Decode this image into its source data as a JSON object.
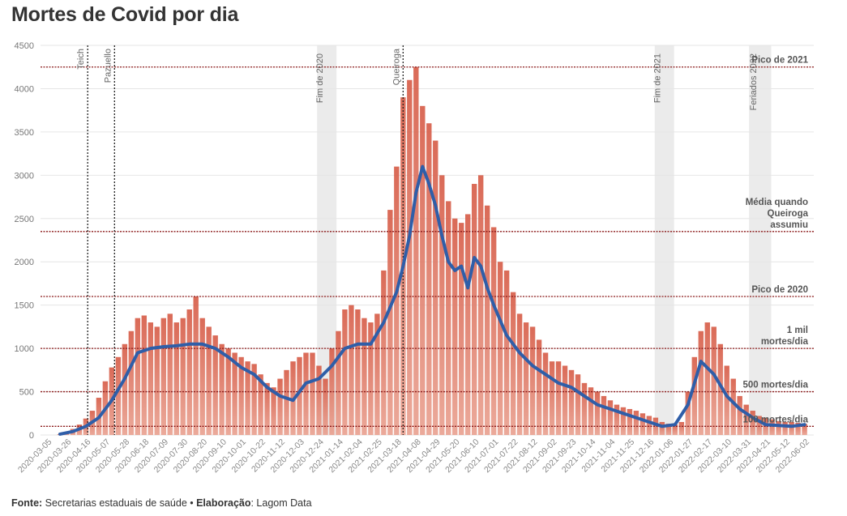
{
  "title": "Mortes de Covid por dia",
  "footer": {
    "source_label": "Fonte:",
    "source_text": " Secretarias estaduais de saúde • ",
    "credit_label": "Elaboração",
    "credit_text": ": Lagom Data"
  },
  "chart_data": {
    "type": "bar",
    "title": "Mortes de Covid por dia",
    "ylim": [
      0,
      4500
    ],
    "yticks": [
      0,
      500,
      1000,
      1500,
      2000,
      2500,
      3000,
      3500,
      4000,
      4500
    ],
    "xlim": [
      "2020-02-25",
      "2022-06-10"
    ],
    "xticks": [
      "2020-03-05",
      "2020-03-26",
      "2020-04-16",
      "2020-05-07",
      "2020-05-28",
      "2020-06-18",
      "2020-07-09",
      "2020-07-30",
      "2020-08-20",
      "2020-09-10",
      "2020-10-01",
      "2020-10-22",
      "2020-11-12",
      "2020-12-03",
      "2020-12-24",
      "2021-01-14",
      "2021-02-04",
      "2021-02-25",
      "2021-03-18",
      "2021-04-08",
      "2021-04-29",
      "2021-05-20",
      "2021-06-10",
      "2021-07-01",
      "2021-07-22",
      "2021-08-12",
      "2021-09-02",
      "2021-09-23",
      "2021-10-14",
      "2021-11-04",
      "2021-11-25",
      "2021-12-16",
      "2022-01-06",
      "2022-01-27",
      "2022-02-17",
      "2022-03-10",
      "2022-03-31",
      "2022-04-21",
      "2022-05-12",
      "2022-06-02"
    ],
    "series": [
      {
        "kind": "bars",
        "color": "#d9604b",
        "x": [
          "2020-03-17",
          "2020-03-24",
          "2020-03-31",
          "2020-04-07",
          "2020-04-14",
          "2020-04-21",
          "2020-04-28",
          "2020-05-05",
          "2020-05-12",
          "2020-05-19",
          "2020-05-26",
          "2020-06-02",
          "2020-06-09",
          "2020-06-16",
          "2020-06-23",
          "2020-06-30",
          "2020-07-07",
          "2020-07-14",
          "2020-07-21",
          "2020-07-28",
          "2020-08-04",
          "2020-08-11",
          "2020-08-18",
          "2020-08-25",
          "2020-09-01",
          "2020-09-08",
          "2020-09-15",
          "2020-09-22",
          "2020-09-29",
          "2020-10-06",
          "2020-10-13",
          "2020-10-20",
          "2020-10-27",
          "2020-11-03",
          "2020-11-10",
          "2020-11-17",
          "2020-11-24",
          "2020-12-01",
          "2020-12-08",
          "2020-12-15",
          "2020-12-22",
          "2020-12-29",
          "2021-01-05",
          "2021-01-12",
          "2021-01-19",
          "2021-01-26",
          "2021-02-02",
          "2021-02-09",
          "2021-02-16",
          "2021-02-23",
          "2021-03-02",
          "2021-03-09",
          "2021-03-16",
          "2021-03-23",
          "2021-03-30",
          "2021-04-06",
          "2021-04-13",
          "2021-04-20",
          "2021-04-27",
          "2021-05-04",
          "2021-05-11",
          "2021-05-18",
          "2021-05-25",
          "2021-06-01",
          "2021-06-08",
          "2021-06-15",
          "2021-06-22",
          "2021-06-29",
          "2021-07-06",
          "2021-07-13",
          "2021-07-20",
          "2021-07-27",
          "2021-08-03",
          "2021-08-10",
          "2021-08-17",
          "2021-08-24",
          "2021-08-31",
          "2021-09-07",
          "2021-09-14",
          "2021-09-21",
          "2021-09-28",
          "2021-10-05",
          "2021-10-12",
          "2021-10-19",
          "2021-10-26",
          "2021-11-02",
          "2021-11-09",
          "2021-11-16",
          "2021-11-23",
          "2021-11-30",
          "2021-12-07",
          "2021-12-14",
          "2021-12-21",
          "2021-12-28",
          "2022-01-04",
          "2022-01-11",
          "2022-01-18",
          "2022-01-25",
          "2022-02-01",
          "2022-02-08",
          "2022-02-15",
          "2022-02-22",
          "2022-03-01",
          "2022-03-08",
          "2022-03-15",
          "2022-03-22",
          "2022-03-29",
          "2022-04-05",
          "2022-04-12",
          "2022-04-19",
          "2022-04-26",
          "2022-05-03",
          "2022-05-10",
          "2022-05-17",
          "2022-05-24",
          "2022-05-31"
        ],
        "y": [
          10,
          30,
          70,
          120,
          190,
          280,
          430,
          620,
          780,
          900,
          1050,
          1200,
          1350,
          1380,
          1300,
          1250,
          1350,
          1400,
          1300,
          1350,
          1450,
          1600,
          1350,
          1250,
          1150,
          1050,
          1000,
          950,
          900,
          850,
          820,
          700,
          600,
          550,
          650,
          750,
          850,
          900,
          950,
          950,
          800,
          650,
          1000,
          1200,
          1450,
          1500,
          1450,
          1350,
          1300,
          1400,
          1900,
          2600,
          3100,
          3900,
          4100,
          4250,
          3800,
          3600,
          3400,
          3000,
          2700,
          2500,
          2450,
          2550,
          2900,
          3000,
          2650,
          2400,
          2000,
          1900,
          1650,
          1400,
          1300,
          1250,
          1100,
          950,
          850,
          850,
          800,
          750,
          700,
          600,
          550,
          500,
          450,
          400,
          350,
          320,
          300,
          280,
          250,
          220,
          200,
          150,
          130,
          120,
          150,
          500,
          900,
          1200,
          1300,
          1250,
          1050,
          800,
          650,
          450,
          350,
          280,
          220,
          200,
          180,
          160,
          150,
          150,
          140,
          130
        ]
      },
      {
        "kind": "line",
        "name": "média móvel",
        "color": "#2f5ea8",
        "x": [
          "2020-03-17",
          "2020-03-31",
          "2020-04-14",
          "2020-04-28",
          "2020-05-12",
          "2020-05-26",
          "2020-06-09",
          "2020-06-23",
          "2020-07-07",
          "2020-07-21",
          "2020-08-04",
          "2020-08-18",
          "2020-09-01",
          "2020-09-15",
          "2020-09-29",
          "2020-10-13",
          "2020-10-27",
          "2020-11-10",
          "2020-11-24",
          "2020-12-08",
          "2020-12-22",
          "2021-01-05",
          "2021-01-19",
          "2021-02-02",
          "2021-02-16",
          "2021-03-02",
          "2021-03-16",
          "2021-03-23",
          "2021-03-30",
          "2021-04-06",
          "2021-04-13",
          "2021-04-20",
          "2021-04-27",
          "2021-05-04",
          "2021-05-11",
          "2021-05-18",
          "2021-05-25",
          "2021-06-01",
          "2021-06-08",
          "2021-06-15",
          "2021-06-22",
          "2021-06-29",
          "2021-07-13",
          "2021-07-27",
          "2021-08-10",
          "2021-08-24",
          "2021-09-07",
          "2021-09-21",
          "2021-10-05",
          "2021-10-19",
          "2021-11-02",
          "2021-11-16",
          "2021-11-30",
          "2021-12-14",
          "2021-12-28",
          "2022-01-11",
          "2022-01-25",
          "2022-02-08",
          "2022-02-22",
          "2022-03-08",
          "2022-03-22",
          "2022-04-05",
          "2022-04-19",
          "2022-05-03",
          "2022-05-17",
          "2022-05-31"
        ],
        "y": [
          10,
          40,
          100,
          200,
          400,
          650,
          950,
          1000,
          1020,
          1030,
          1050,
          1050,
          1000,
          900,
          780,
          700,
          550,
          450,
          400,
          600,
          650,
          800,
          1000,
          1050,
          1050,
          1300,
          1650,
          1950,
          2300,
          2800,
          3100,
          2900,
          2650,
          2300,
          2000,
          1900,
          1950,
          1700,
          2050,
          1950,
          1700,
          1500,
          1150,
          950,
          800,
          700,
          600,
          550,
          450,
          350,
          300,
          250,
          200,
          150,
          100,
          120,
          350,
          850,
          700,
          450,
          300,
          200,
          120,
          110,
          100,
          120
        ]
      }
    ],
    "reference_lines": [
      {
        "y": 4250,
        "label": [
          "Pico de 2021"
        ]
      },
      {
        "y": 2350,
        "label": [
          "Média quando",
          "Queiroga",
          "assumiu"
        ]
      },
      {
        "y": 1600,
        "label": [
          "Pico de 2020"
        ]
      },
      {
        "y": 1000,
        "label": [
          "1 mil",
          "mortes/dia"
        ]
      },
      {
        "y": 500,
        "label": [
          "500 mortes/dia"
        ]
      },
      {
        "y": 100,
        "label": [
          "100 mortes/dia"
        ]
      }
    ],
    "events": [
      {
        "date": "2020-04-16",
        "label": "Teich",
        "style": "dotted"
      },
      {
        "date": "2020-05-15",
        "label": "Pazuello",
        "style": "dotted"
      },
      {
        "date": "2021-03-23",
        "label": "Queiroga",
        "style": "dotted"
      }
    ],
    "shaded_periods": [
      {
        "start": "2020-12-20",
        "end": "2021-01-10",
        "label": "Fim de 2020"
      },
      {
        "start": "2021-12-20",
        "end": "2022-01-10",
        "label": "Fim de 2021"
      },
      {
        "start": "2022-04-01",
        "end": "2022-04-25",
        "label": "Feriados 2022"
      }
    ]
  }
}
